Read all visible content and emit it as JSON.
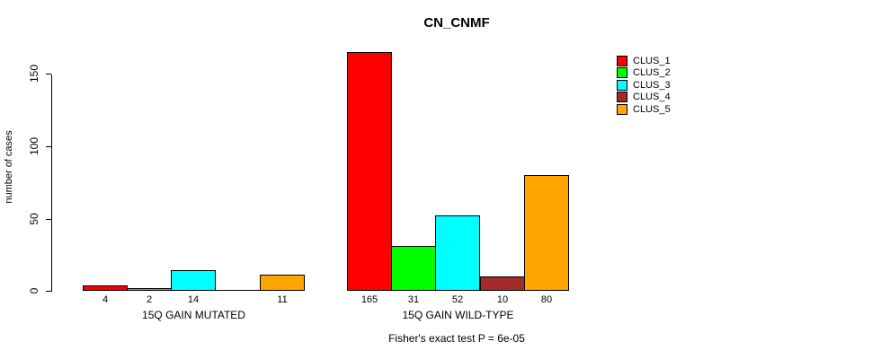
{
  "title": "CN_CNMF",
  "y_axis": {
    "label": "number of cases",
    "ticks": [
      0,
      50,
      100,
      150
    ]
  },
  "legend": {
    "items": [
      {
        "label": "CLUS_1",
        "color": "#FF0000"
      },
      {
        "label": "CLUS_2",
        "color": "#00FF00"
      },
      {
        "label": "CLUS_3",
        "color": "#00FFFF"
      },
      {
        "label": "CLUS_4",
        "color": "#A52A2A"
      },
      {
        "label": "CLUS_5",
        "color": "#FFA500"
      }
    ]
  },
  "annotation": "Fisher's exact test P = 6e-05",
  "chart_data": {
    "type": "bar",
    "title": "CN_CNMF",
    "xlabel": "",
    "ylabel": "number of cases",
    "ylim": [
      0,
      165
    ],
    "yticks": [
      0,
      50,
      100,
      150
    ],
    "grid": false,
    "legend_position": "top-right",
    "categories": [
      "15Q GAIN MUTATED",
      "15Q GAIN WILD-TYPE"
    ],
    "series": [
      {
        "name": "CLUS_1",
        "color": "#FF0000",
        "values": [
          4,
          165
        ]
      },
      {
        "name": "CLUS_2",
        "color": "#00FF00",
        "values": [
          2,
          31
        ]
      },
      {
        "name": "CLUS_3",
        "color": "#00FFFF",
        "values": [
          14,
          52
        ]
      },
      {
        "name": "CLUS_4",
        "color": "#A52A2A",
        "values": [
          0,
          10
        ]
      },
      {
        "name": "CLUS_5",
        "color": "#FFA500",
        "values": [
          11,
          80
        ]
      }
    ],
    "bar_labels": [
      [
        "4",
        "2",
        "14",
        "",
        "11"
      ],
      [
        "165",
        "31",
        "52",
        "10",
        "80"
      ]
    ],
    "annotation": "Fisher's exact test P = 6e-05"
  }
}
